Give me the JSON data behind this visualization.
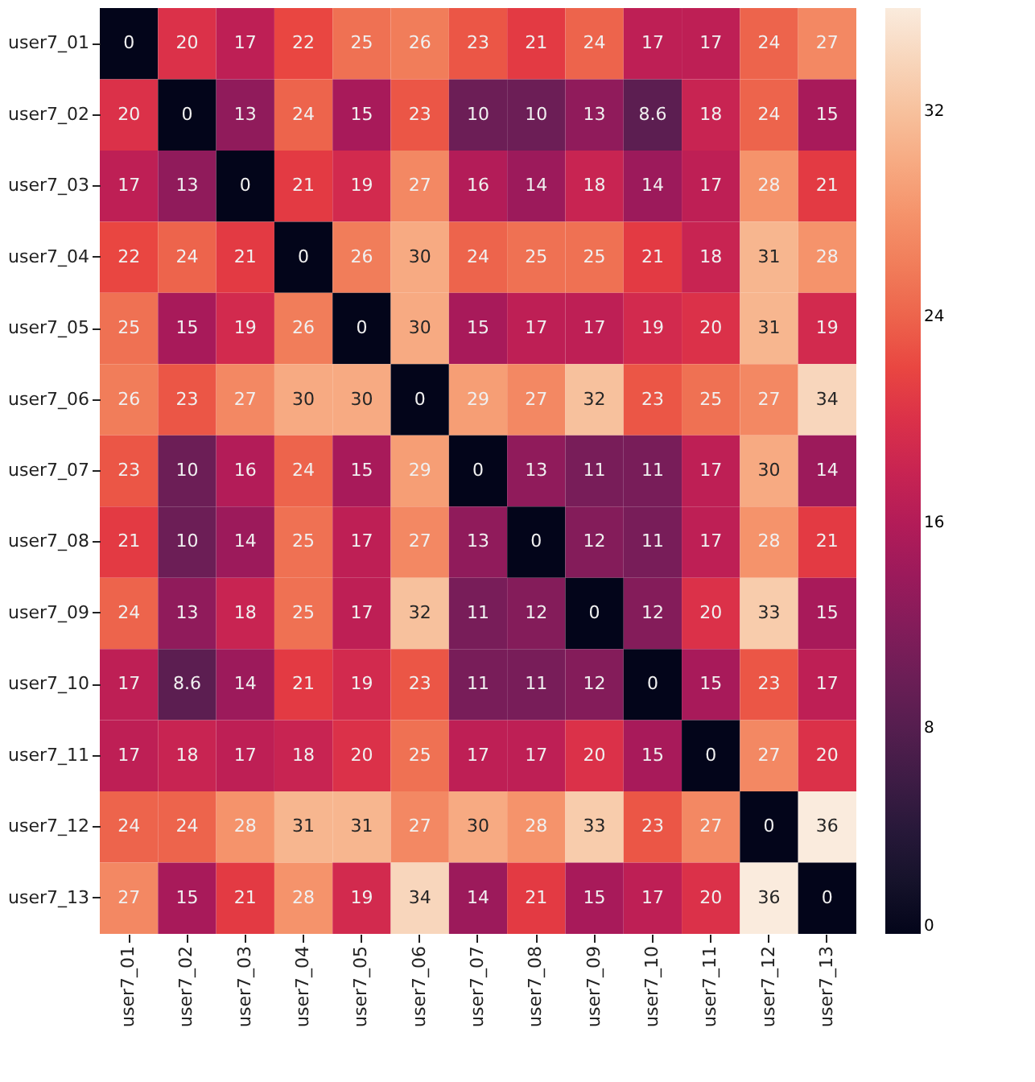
{
  "chart_data": {
    "type": "heatmap",
    "categories": [
      "user7_01",
      "user7_02",
      "user7_03",
      "user7_04",
      "user7_05",
      "user7_06",
      "user7_07",
      "user7_08",
      "user7_09",
      "user7_10",
      "user7_11",
      "user7_12",
      "user7_13"
    ],
    "y_categories": [
      "user7_01",
      "user7_02",
      "user7_03",
      "user7_04",
      "user7_05",
      "user7_06",
      "user7_07",
      "user7_08",
      "user7_09",
      "user7_10",
      "user7_11",
      "user7_12",
      "user7_13"
    ],
    "cells": [
      [
        0,
        20,
        17,
        22,
        25,
        26,
        23,
        21,
        24,
        17,
        17,
        24,
        27
      ],
      [
        20,
        0,
        13,
        24,
        15,
        23,
        10,
        10,
        13,
        8.6,
        18,
        24,
        15
      ],
      [
        17,
        13,
        0,
        21,
        19,
        27,
        16,
        14,
        18,
        14,
        17,
        28,
        21
      ],
      [
        22,
        24,
        21,
        0,
        26,
        30,
        24,
        25,
        25,
        21,
        18,
        31,
        28
      ],
      [
        25,
        15,
        19,
        26,
        0,
        30,
        15,
        17,
        17,
        19,
        20,
        31,
        19
      ],
      [
        26,
        23,
        27,
        30,
        30,
        0,
        29,
        27,
        32,
        23,
        25,
        27,
        34
      ],
      [
        23,
        10,
        16,
        24,
        15,
        29,
        0,
        13,
        11,
        11,
        17,
        30,
        14
      ],
      [
        21,
        10,
        14,
        25,
        17,
        27,
        13,
        0,
        12,
        11,
        17,
        28,
        21
      ],
      [
        24,
        13,
        18,
        25,
        17,
        32,
        11,
        12,
        0,
        12,
        20,
        33,
        15
      ],
      [
        17,
        8.6,
        14,
        21,
        19,
        23,
        11,
        11,
        12,
        0,
        15,
        23,
        17
      ],
      [
        17,
        18,
        17,
        18,
        20,
        25,
        17,
        17,
        20,
        15,
        0,
        27,
        20
      ],
      [
        24,
        24,
        28,
        31,
        31,
        27,
        30,
        28,
        33,
        23,
        27,
        0,
        36
      ],
      [
        27,
        15,
        21,
        28,
        19,
        34,
        14,
        21,
        15,
        17,
        20,
        36,
        0
      ]
    ],
    "data_labels": true,
    "clim": [
      0,
      36
    ],
    "cticks": [
      0,
      8,
      16,
      24,
      32
    ]
  }
}
